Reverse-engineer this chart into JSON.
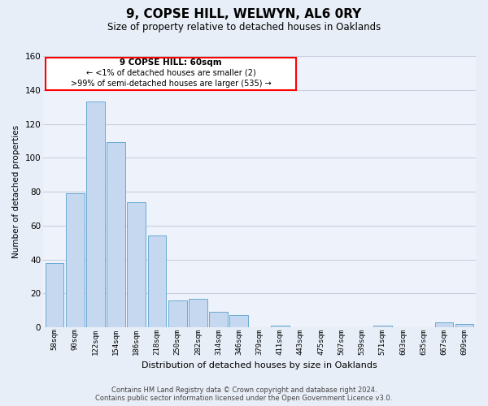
{
  "title": "9, COPSE HILL, WELWYN, AL6 0RY",
  "subtitle": "Size of property relative to detached houses in Oaklands",
  "xlabel": "Distribution of detached houses by size in Oaklands",
  "ylabel": "Number of detached properties",
  "bar_labels": [
    "58sqm",
    "90sqm",
    "122sqm",
    "154sqm",
    "186sqm",
    "218sqm",
    "250sqm",
    "282sqm",
    "314sqm",
    "346sqm",
    "379sqm",
    "411sqm",
    "443sqm",
    "475sqm",
    "507sqm",
    "539sqm",
    "571sqm",
    "603sqm",
    "635sqm",
    "667sqm",
    "699sqm"
  ],
  "bar_values": [
    38,
    79,
    133,
    109,
    74,
    54,
    16,
    17,
    9,
    7,
    0,
    1,
    0,
    0,
    0,
    0,
    1,
    0,
    0,
    3,
    2
  ],
  "bar_color": "#c5d8ef",
  "bar_edge_color": "#6aaad4",
  "ylim": [
    0,
    160
  ],
  "yticks": [
    0,
    20,
    40,
    60,
    80,
    100,
    120,
    140,
    160
  ],
  "annotation_line1": "9 COPSE HILL: 60sqm",
  "annotation_line2": "← <1% of detached houses are smaller (2)",
  "annotation_line3": ">99% of semi-detached houses are larger (535) →",
  "footer_line1": "Contains HM Land Registry data © Crown copyright and database right 2024.",
  "footer_line2": "Contains public sector information licensed under the Open Government Licence v3.0.",
  "background_color": "#e8eef7",
  "plot_background_color": "#eef2fa",
  "grid_color": "#c8d0e0"
}
